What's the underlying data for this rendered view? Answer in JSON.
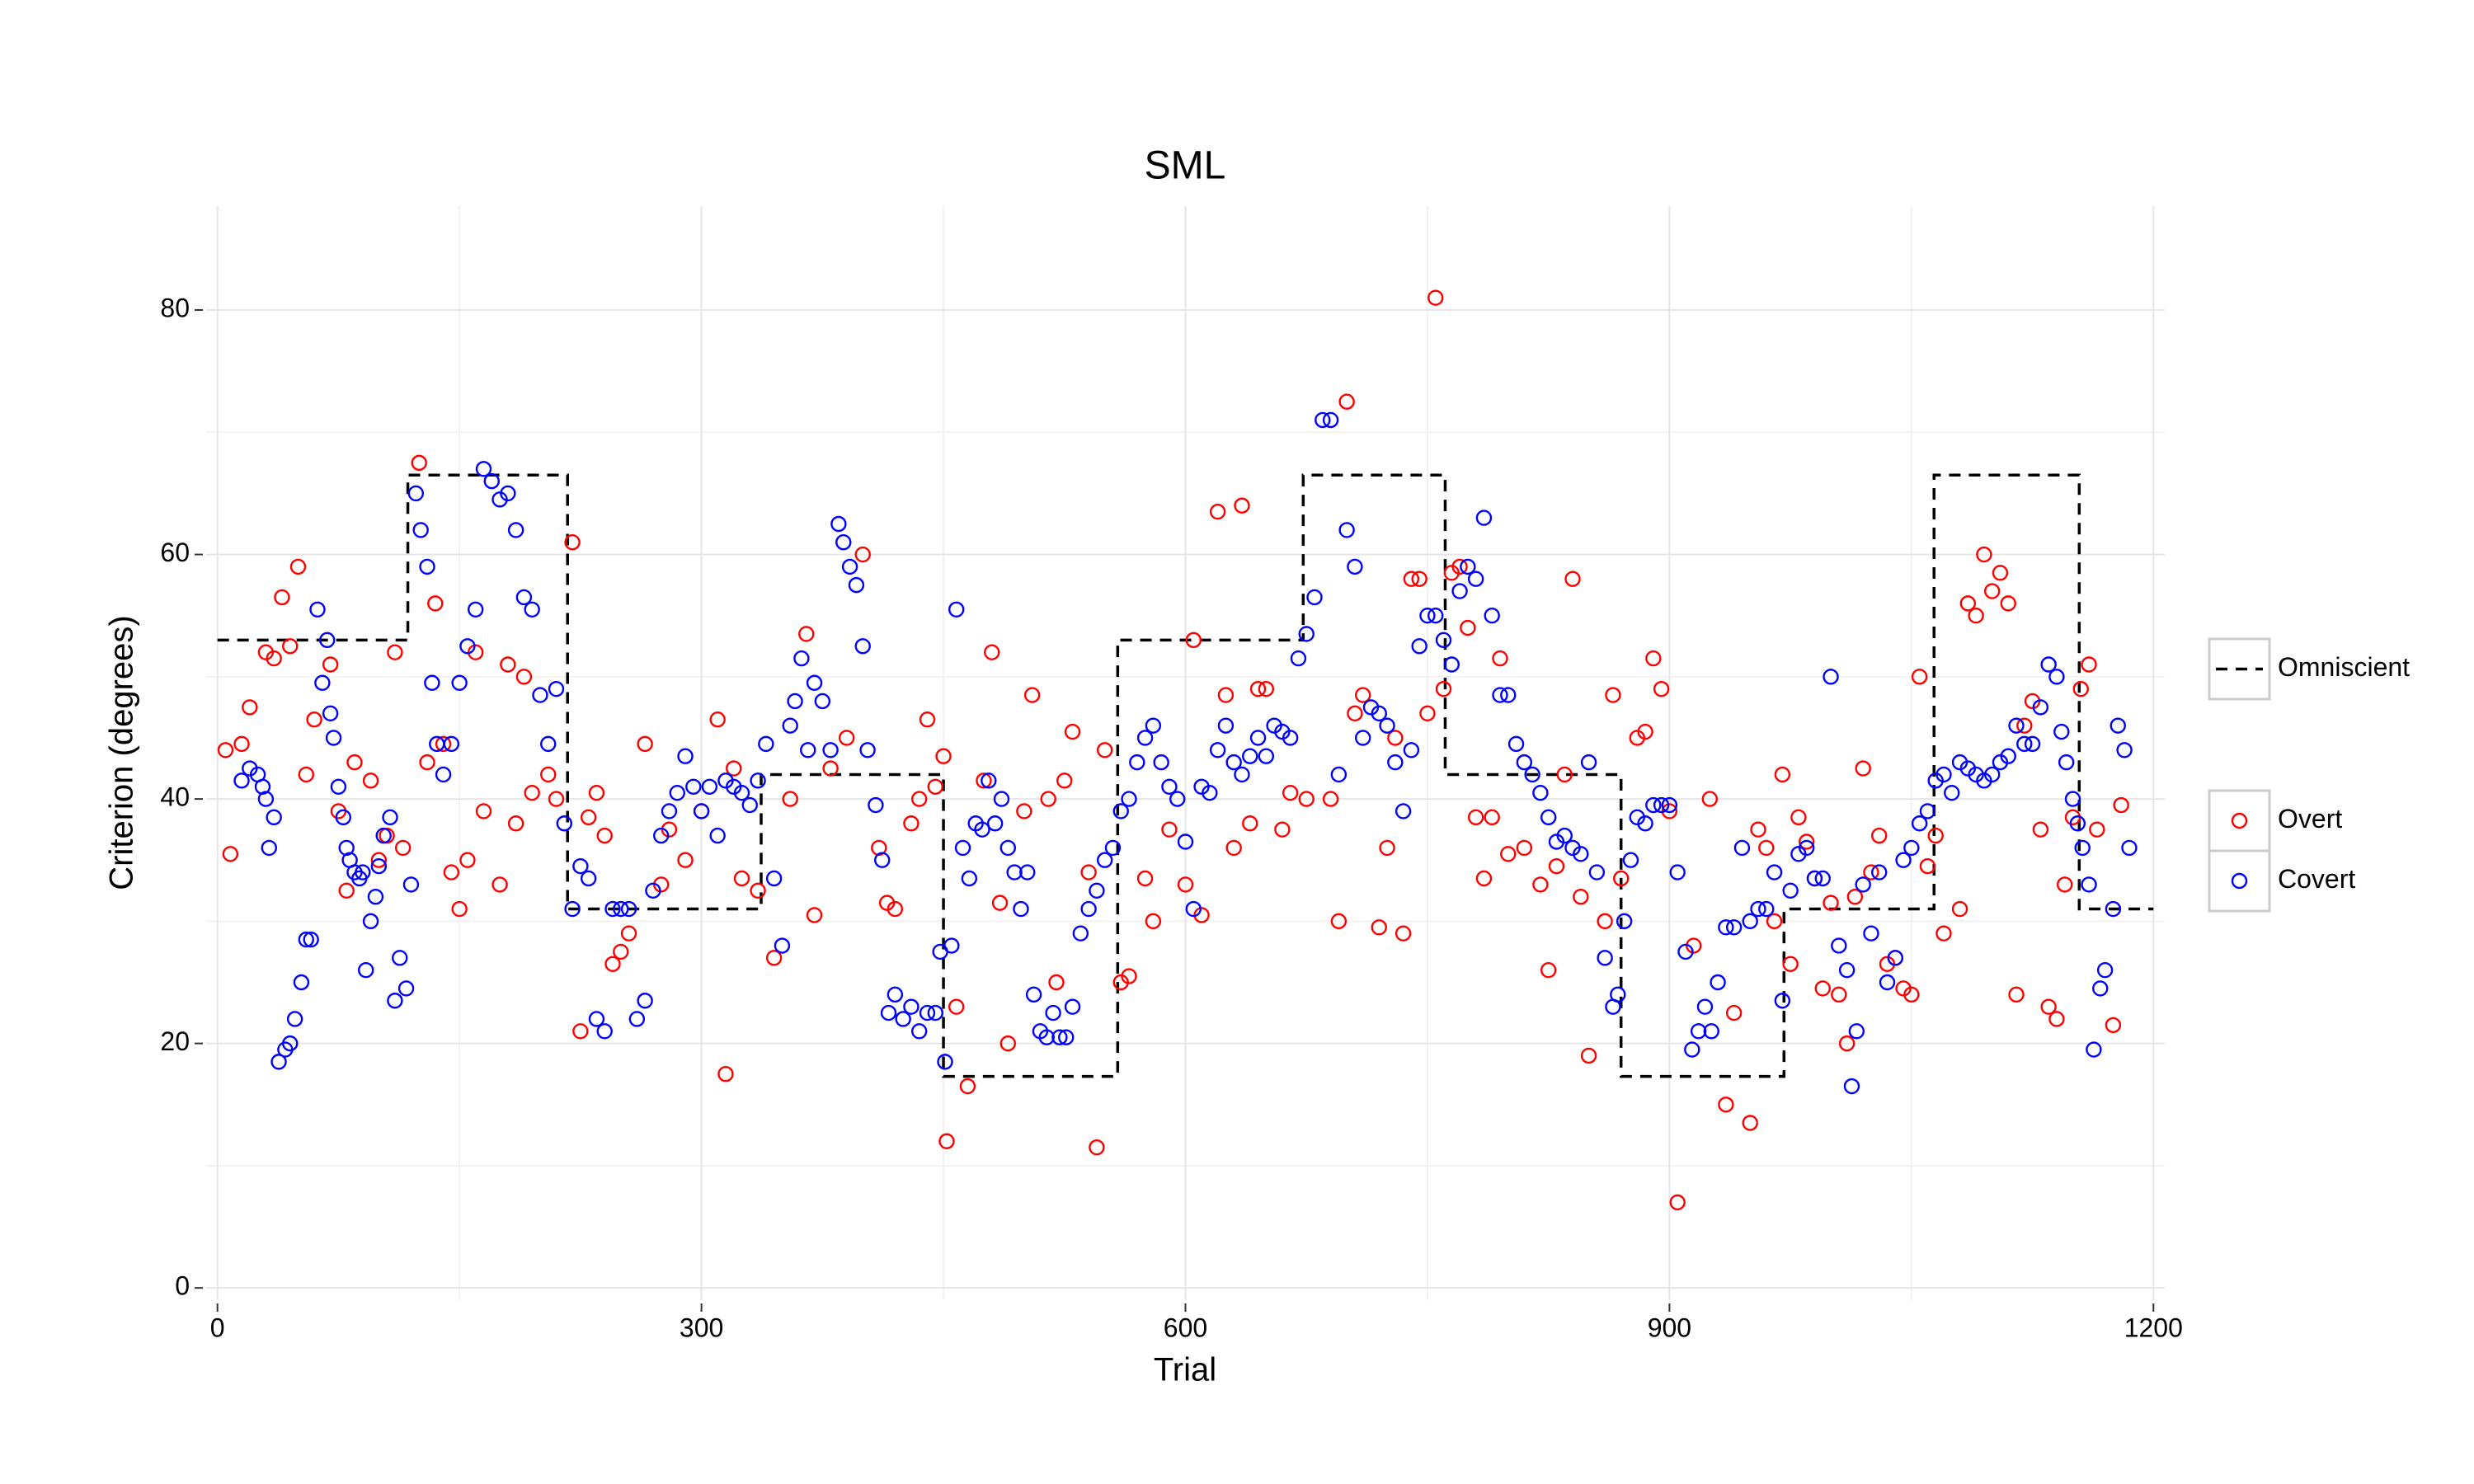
{
  "chart_data": {
    "type": "scatter",
    "title": "SML",
    "x_label": "Trial",
    "y_label": "Criterion (degrees)",
    "xlim": [
      -7,
      1207
    ],
    "ylim": [
      -1,
      88.5
    ],
    "xticks": [
      0,
      300,
      600,
      900,
      1200
    ],
    "yticks": [
      0,
      20,
      40,
      60,
      80
    ],
    "x_minor_grid": [
      150,
      450,
      750,
      1050
    ],
    "y_minor_grid": [
      10,
      30,
      50,
      70
    ],
    "grid": true,
    "series": [
      {
        "name": "Omniscient",
        "type": "step-line",
        "color": "#000000",
        "dashed": true,
        "x": [
          0,
          118,
          118,
          217,
          217,
          337,
          337,
          450,
          450,
          558,
          558,
          673,
          673,
          761,
          761,
          870,
          870,
          971,
          971,
          1064,
          1064,
          1154,
          1154,
          1200
        ],
        "values": [
          53,
          53,
          66.5,
          66.5,
          31,
          31,
          42,
          42,
          17.3,
          17.3,
          53,
          53,
          66.5,
          66.5,
          42,
          42,
          17.3,
          17.3,
          31,
          31,
          66.5,
          66.5,
          31,
          31
        ]
      },
      {
        "name": "Overt",
        "type": "points",
        "color": "#ff0000",
        "x": [
          5,
          8,
          15,
          20,
          30,
          35,
          40,
          45,
          50,
          55,
          60,
          70,
          75,
          80,
          85,
          95,
          100,
          105,
          110,
          115,
          125,
          130,
          135,
          140,
          145,
          150,
          155,
          160,
          165,
          175,
          180,
          185,
          190,
          195,
          205,
          210,
          220,
          225,
          230,
          235,
          240,
          245,
          250,
          255,
          265,
          275,
          280,
          290,
          300,
          310,
          315,
          320,
          325,
          335,
          345,
          355,
          365,
          370,
          380,
          390,
          400,
          410,
          415,
          420,
          430,
          435,
          440,
          445,
          450,
          452,
          458,
          465,
          475,
          480,
          485,
          490,
          500,
          505,
          515,
          520,
          525,
          530,
          540,
          545,
          550,
          560,
          565,
          575,
          580,
          590,
          600,
          605,
          610,
          620,
          625,
          630,
          635,
          640,
          645,
          650,
          660,
          665,
          675,
          690,
          695,
          700,
          705,
          710,
          720,
          725,
          730,
          735,
          740,
          745,
          750,
          755,
          760,
          765,
          770,
          775,
          780,
          785,
          790,
          795,
          800,
          810,
          820,
          825,
          830,
          835,
          840,
          845,
          850,
          860,
          865,
          870,
          880,
          885,
          890,
          895,
          900,
          905,
          915,
          925,
          935,
          940,
          950,
          955,
          960,
          965,
          970,
          975,
          980,
          985,
          990,
          995,
          1000,
          1005,
          1010,
          1015,
          1020,
          1025,
          1030,
          1035,
          1040,
          1045,
          1050,
          1055,
          1060,
          1065,
          1070,
          1080,
          1085,
          1090,
          1095,
          1100,
          1105,
          1110,
          1115,
          1120,
          1125,
          1130,
          1135,
          1140,
          1145,
          1150,
          1155,
          1160,
          1165,
          1175,
          1180
        ],
        "values": [
          44,
          35.5,
          44.5,
          47.5,
          52,
          51.5,
          56.5,
          52.5,
          59,
          42,
          46.5,
          51,
          39,
          32.5,
          43,
          41.5,
          35,
          37,
          52,
          36,
          67.5,
          43,
          56,
          44.5,
          34,
          31,
          35,
          52,
          39,
          33,
          51,
          38,
          50,
          40.5,
          42,
          40,
          61,
          21,
          38.5,
          40.5,
          37,
          26.5,
          27.5,
          29,
          44.5,
          33,
          37.5,
          35,
          39,
          46.5,
          17.5,
          42.5,
          33.5,
          32.5,
          27,
          40,
          53.5,
          30.5,
          42.5,
          45,
          60,
          36,
          31.5,
          31,
          38,
          40,
          46.5,
          41,
          43.5,
          12,
          23,
          16.5,
          41.5,
          52,
          31.5,
          20,
          39,
          48.5,
          40,
          25,
          41.5,
          45.5,
          34,
          11.5,
          44,
          25,
          25.5,
          33.5,
          30,
          37.5,
          33,
          53,
          30.5,
          63.5,
          48.5,
          36,
          64,
          38,
          49,
          49,
          37.5,
          40.5,
          40,
          40,
          30,
          72.5,
          47,
          48.5,
          29.5,
          36,
          45,
          29,
          58,
          58,
          47,
          81,
          49,
          58.5,
          59,
          54,
          38.5,
          33.5,
          38.5,
          51.5,
          35.5,
          36,
          33,
          26,
          34.5,
          42,
          58,
          32,
          19,
          30,
          48.5,
          33.5,
          45,
          45.5,
          51.5,
          49,
          39,
          7,
          28,
          40,
          15,
          22.5,
          13.5,
          37.5,
          36,
          30,
          42,
          26.5,
          38.5,
          36.5,
          33.5,
          24.5,
          31.5,
          24,
          20,
          32,
          42.5,
          34,
          37,
          26.5,
          27,
          24.5,
          24,
          50,
          34.5,
          37,
          29,
          31,
          56,
          55,
          60,
          57,
          58.5,
          56,
          24,
          46,
          48,
          37.5,
          23,
          22,
          33,
          38.5,
          49,
          51,
          37.5,
          21.5,
          39.5
        ]
      },
      {
        "name": "Covert",
        "type": "points",
        "color": "#0000ff",
        "x": [
          15,
          20,
          25,
          28,
          30,
          32,
          35,
          38,
          42,
          45,
          48,
          52,
          55,
          58,
          62,
          65,
          68,
          70,
          72,
          75,
          78,
          80,
          82,
          85,
          88,
          90,
          92,
          95,
          98,
          100,
          103,
          107,
          110,
          113,
          117,
          120,
          123,
          126,
          130,
          133,
          136,
          140,
          145,
          150,
          155,
          160,
          165,
          170,
          175,
          180,
          185,
          190,
          195,
          200,
          205,
          210,
          215,
          220,
          225,
          230,
          235,
          240,
          245,
          250,
          255,
          260,
          265,
          270,
          275,
          280,
          285,
          290,
          295,
          300,
          305,
          310,
          315,
          320,
          325,
          330,
          335,
          340,
          345,
          350,
          355,
          358,
          362,
          366,
          370,
          375,
          380,
          385,
          388,
          392,
          396,
          400,
          403,
          408,
          412,
          416,
          420,
          425,
          430,
          435,
          440,
          445,
          448,
          451,
          455,
          458,
          462,
          466,
          470,
          474,
          478,
          482,
          486,
          490,
          494,
          498,
          502,
          506,
          510,
          514,
          518,
          522,
          526,
          530,
          535,
          540,
          545,
          550,
          555,
          560,
          565,
          570,
          575,
          580,
          585,
          590,
          595,
          600,
          605,
          610,
          615,
          620,
          625,
          630,
          635,
          640,
          645,
          650,
          655,
          660,
          665,
          670,
          675,
          680,
          685,
          690,
          695,
          700,
          705,
          710,
          715,
          720,
          725,
          730,
          735,
          740,
          745,
          750,
          755,
          760,
          765,
          770,
          775,
          780,
          785,
          790,
          795,
          800,
          805,
          810,
          815,
          820,
          825,
          830,
          835,
          840,
          845,
          850,
          855,
          860,
          865,
          868,
          872,
          876,
          880,
          885,
          890,
          895,
          900,
          905,
          910,
          914,
          918,
          922,
          926,
          930,
          935,
          940,
          945,
          950,
          955,
          960,
          965,
          970,
          975,
          980,
          985,
          990,
          995,
          1000,
          1005,
          1010,
          1013,
          1016,
          1020,
          1025,
          1030,
          1035,
          1040,
          1045,
          1050,
          1055,
          1060,
          1065,
          1070,
          1075,
          1080,
          1085,
          1090,
          1095,
          1100,
          1105,
          1110,
          1115,
          1120,
          1125,
          1130,
          1135,
          1140,
          1143,
          1146,
          1150,
          1153,
          1156,
          1160,
          1163,
          1167,
          1170,
          1175,
          1178,
          1182,
          1185
        ],
        "values": [
          41.5,
          42.5,
          42,
          41,
          40,
          36,
          38.5,
          18.5,
          19.5,
          20,
          22,
          25,
          28.5,
          28.5,
          55.5,
          49.5,
          53,
          47,
          45,
          41,
          38.5,
          36,
          35,
          34,
          33.5,
          34,
          26,
          30,
          32,
          34.5,
          37,
          38.5,
          23.5,
          27,
          24.5,
          33,
          65,
          62,
          59,
          49.5,
          44.5,
          42,
          44.5,
          49.5,
          52.5,
          55.5,
          67,
          66,
          64.5,
          65,
          62,
          56.5,
          55.5,
          48.5,
          44.5,
          49,
          38,
          31,
          34.5,
          33.5,
          22,
          21,
          31,
          31,
          31,
          22,
          23.5,
          32.5,
          37,
          39,
          40.5,
          43.5,
          41,
          39,
          41,
          37,
          41.5,
          41,
          40.5,
          39.5,
          41.5,
          44.5,
          33.5,
          28,
          46,
          48,
          51.5,
          44,
          49.5,
          48,
          44,
          62.5,
          61,
          59,
          57.5,
          52.5,
          44,
          39.5,
          35,
          22.5,
          24,
          22,
          23,
          21,
          22.5,
          22.5,
          27.5,
          18.5,
          28,
          55.5,
          36,
          33.5,
          38,
          37.5,
          41.5,
          38,
          40,
          36,
          34,
          31,
          34,
          24,
          21,
          20.5,
          22.5,
          20.5,
          20.5,
          23,
          29,
          31,
          32.5,
          35,
          36,
          39,
          40,
          43,
          45,
          46,
          43,
          41,
          40,
          36.5,
          31,
          41,
          40.5,
          44,
          46,
          43,
          42,
          43.5,
          45,
          43.5,
          46,
          45.5,
          45,
          51.5,
          53.5,
          56.5,
          71,
          71,
          42,
          62,
          59,
          45,
          47.5,
          47,
          46,
          43,
          39,
          44,
          52.5,
          55,
          55,
          53,
          51,
          57,
          59,
          58,
          63,
          55,
          48.5,
          48.5,
          44.5,
          43,
          42,
          40.5,
          38.5,
          36.5,
          37,
          36,
          35.5,
          43,
          34,
          27,
          23,
          24,
          30,
          35,
          38.5,
          38,
          39.5,
          39.5,
          39.5,
          34,
          27.5,
          19.5,
          21,
          23,
          21,
          25,
          29.5,
          29.5,
          36,
          30,
          31,
          31,
          34,
          23.5,
          32.5,
          35.5,
          36,
          33.5,
          33.5,
          50,
          28,
          26,
          16.5,
          21,
          33,
          29,
          34,
          25,
          27,
          35,
          36,
          38,
          39,
          41.5,
          42,
          40.5,
          43,
          42.5,
          42,
          41.5,
          42,
          43,
          43.5,
          46,
          44.5,
          44.5,
          47.5,
          51,
          50,
          45.5,
          43,
          40,
          38,
          36,
          33,
          19.5,
          24.5,
          26,
          31,
          46,
          44,
          36
        ]
      }
    ]
  }
}
